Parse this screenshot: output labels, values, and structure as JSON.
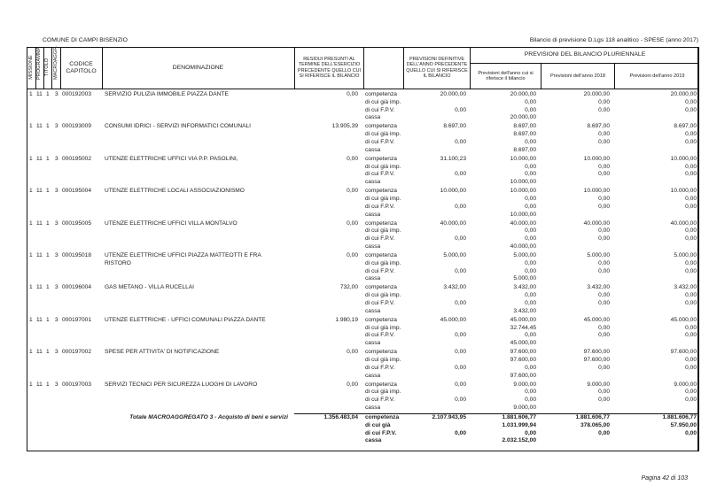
{
  "header": {
    "entity": "COMUNE DI CAMPI BISENZIO",
    "report_title": "Bilancio di previsione D.Lgs 118 analitico - SPESE (anno 2017)"
  },
  "columns": {
    "missione": "MISSIONE",
    "programma": "PROGRAMMA",
    "titolo": "TITOLO",
    "macroaggr": "MACROAGGR.",
    "codice": "CODICE CAPITOLO",
    "denominazione": "DENOMINAZIONE",
    "residui": "RESIDUI PRESUNTI AL TERMINE DELL'ESERCIZIO PRECEDENTE QUELLO CUI SI RIFERISCE IL BILANCIO",
    "prev_def": "PREVISIONI DEFINITIVE DELL'ANNO PRECEDENTE QUELLO CUI SI RIFERISCE IL BILANCIO",
    "pluriennale": "PREVISIONI DEL BILANCIO PLURIENNALE",
    "anno_cui": "Previsioni dell'anno cui si riferisce il bilancio",
    "anno_2018": "Previsioni dell'anno 2018",
    "anno_2019": "Previsioni dell'anno 2019"
  },
  "row_labels": [
    "competenza",
    "di cui già imp.",
    "di cui F.P.V.",
    "cassa"
  ],
  "rows": [
    {
      "missione": "1",
      "programma": "11",
      "titolo": "1",
      "macro": "3",
      "codice": "000192003",
      "denominazione": "SERVIZIO PULIZIA IMMOBILE PIAZZA DANTE",
      "residui": "0,00",
      "prev_def": [
        "20.000,00",
        "0,00"
      ],
      "anno": [
        "20.000,00",
        "0,00",
        "0,00",
        "20.000,00"
      ],
      "y2018": [
        "20.000,00",
        "0,00",
        "0,00"
      ],
      "y2019": [
        "20.000,00",
        "0,00",
        "0,00"
      ]
    },
    {
      "missione": "1",
      "programma": "11",
      "titolo": "1",
      "macro": "3",
      "codice": "000193009",
      "denominazione": "CONSUMI IDRICI - SERVIZI INFORMATICI COMUNALI",
      "residui": "13.905,39",
      "prev_def": [
        "8.697,00",
        "0,00"
      ],
      "anno": [
        "8.697,00",
        "8.697,00",
        "0,00",
        "8.697,00"
      ],
      "y2018": [
        "8.697,00",
        "0,00",
        "0,00"
      ],
      "y2019": [
        "8.697,00",
        "0,00",
        "0,00"
      ]
    },
    {
      "missione": "1",
      "programma": "11",
      "titolo": "1",
      "macro": "3",
      "codice": "000195002",
      "denominazione": "UTENZE ELETTRICHE UFFICI VIA P.P. PASOLINI,",
      "residui": "0,00",
      "prev_def": [
        "31.100,23",
        "0,00"
      ],
      "anno": [
        "10.000,00",
        "0,00",
        "0,00",
        "10.000,00"
      ],
      "y2018": [
        "10.000,00",
        "0,00",
        "0,00"
      ],
      "y2019": [
        "10.000,00",
        "0,00",
        "0,00"
      ]
    },
    {
      "missione": "1",
      "programma": "11",
      "titolo": "1",
      "macro": "3",
      "codice": "000195004",
      "denominazione": "UTENZE ELETTRICHE LOCALI ASSOCIAZIONISMO",
      "residui": "0,00",
      "prev_def": [
        "10.000,00",
        "0,00"
      ],
      "anno": [
        "10.000,00",
        "0,00",
        "0,00",
        "10.000,00"
      ],
      "y2018": [
        "10.000,00",
        "0,00",
        "0,00"
      ],
      "y2019": [
        "10.000,00",
        "0,00",
        "0,00"
      ]
    },
    {
      "missione": "1",
      "programma": "11",
      "titolo": "1",
      "macro": "3",
      "codice": "000195005",
      "denominazione": "UTENZE ELETTRICHE UFFICI VILLA MONTALVO",
      "residui": "0,00",
      "prev_def": [
        "40.000,00",
        "0,00"
      ],
      "anno": [
        "40.000,00",
        "0,00",
        "0,00",
        "40.000,00"
      ],
      "y2018": [
        "40.000,00",
        "0,00",
        "0,00"
      ],
      "y2019": [
        "40.000,00",
        "0,00",
        "0,00"
      ]
    },
    {
      "missione": "1",
      "programma": "11",
      "titolo": "1",
      "macro": "3",
      "codice": "000195018",
      "denominazione": "UTENZE ELETTRICHE UFFICI  PIAZZA MATTEOTTI E FRA RISTORO",
      "residui": "0,00",
      "prev_def": [
        "5.000,00",
        "0,00"
      ],
      "anno": [
        "5.000,00",
        "0,00",
        "0,00",
        "5.000,00"
      ],
      "y2018": [
        "5.000,00",
        "0,00",
        "0,00"
      ],
      "y2019": [
        "5.000,00",
        "0,00",
        "0,00"
      ]
    },
    {
      "missione": "1",
      "programma": "11",
      "titolo": "1",
      "macro": "3",
      "codice": "000196004",
      "denominazione": "GAS METANO - VILLA RUCELLAI",
      "residui": "732,00",
      "prev_def": [
        "3.432,00",
        "0,00"
      ],
      "anno": [
        "3.432,00",
        "0,00",
        "0,00",
        "3.432,00"
      ],
      "y2018": [
        "3.432,00",
        "0,00",
        "0,00"
      ],
      "y2019": [
        "3.432,00",
        "0,00",
        "0,00"
      ]
    },
    {
      "missione": "1",
      "programma": "11",
      "titolo": "1",
      "macro": "3",
      "codice": "000197001",
      "denominazione": "UTENZE ELETTRICHE - UFFICI COMUNALI PIAZZA DANTE",
      "residui": "1.980,19",
      "prev_def": [
        "45.000,00",
        "0,00"
      ],
      "anno": [
        "45.000,00",
        "32.744,45",
        "0,00",
        "45.000,00"
      ],
      "y2018": [
        "45.000,00",
        "0,00",
        "0,00"
      ],
      "y2019": [
        "45.000,00",
        "0,00",
        "0,00"
      ]
    },
    {
      "missione": "1",
      "programma": "11",
      "titolo": "1",
      "macro": "3",
      "codice": "000197002",
      "denominazione": "SPESE PER ATTIVITA' DI NOTIFICAZIONE",
      "residui": "0,00",
      "prev_def": [
        "0,00",
        "0,00"
      ],
      "anno": [
        "97.600,00",
        "97.600,00",
        "0,00",
        "97.600,00"
      ],
      "y2018": [
        "97.600,00",
        "97.600,00",
        "0,00"
      ],
      "y2019": [
        "97.600,00",
        "0,00",
        "0,00"
      ]
    },
    {
      "missione": "1",
      "programma": "11",
      "titolo": "1",
      "macro": "3",
      "codice": "000197003",
      "denominazione": "SERVIZI TECNICI PER SICUREZZA LUOGHI DI LAVORO",
      "residui": "0,00",
      "prev_def": [
        "0,00",
        "0,00"
      ],
      "anno": [
        "9.000,00",
        "0,00",
        "0,00",
        "9.000,00"
      ],
      "y2018": [
        "9.000,00",
        "0,00",
        "0,00"
      ],
      "y2019": [
        "9.000,00",
        "0,00",
        "0,00"
      ]
    }
  ],
  "total": {
    "label": "Totale MACROAGGREGATO 3 - Acquisto di beni e servizi",
    "labels": [
      "competenza",
      "di cui già",
      "di cui F.P.V.",
      "cassa"
    ],
    "residui": "1.356.483,04",
    "prev_def": [
      "2.107.943,95",
      "0,00"
    ],
    "anno": [
      "1.881.606,77",
      "1.031.999,94",
      "0,00",
      "2.032.152,00"
    ],
    "y2018": [
      "1.881.606,77",
      "378.065,00",
      "0,00"
    ],
    "y2019": [
      "1.881.606,77",
      "57.950,00",
      "0,00"
    ]
  },
  "footer": {
    "page": "Pagina 42 di 103"
  }
}
